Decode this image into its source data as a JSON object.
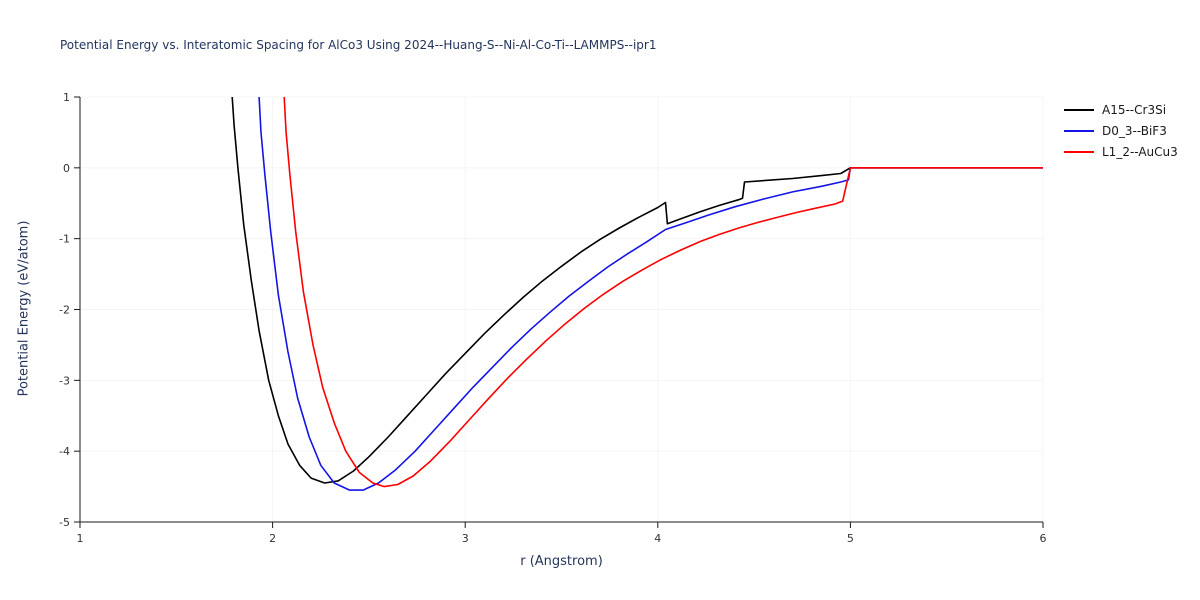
{
  "title": "Potential Energy vs. Interatomic Spacing for AlCo3 Using 2024--Huang-S--Ni-Al-Co-Ti--LAMMPS--ipr1",
  "style": {
    "title_color": "#24355c",
    "axis_label_color": "#24355c",
    "tick_label_color": "#333333",
    "axis_line_color": "#1a1a1a",
    "background": "#ffffff"
  },
  "axes": {
    "xlabel": "r (Angstrom)",
    "ylabel": "Potential Energy (eV/atom)"
  },
  "legend": {
    "position": "top-right",
    "entries": [
      {
        "label": "A15--Cr3Si",
        "color": "#000000"
      },
      {
        "label": "D0_3--BiF3",
        "color": "#1414e6"
      },
      {
        "label": "L1_2--AuCu3",
        "color": "#ff0000"
      }
    ]
  },
  "chart_data": {
    "type": "line",
    "title": "Potential Energy vs. Interatomic Spacing for AlCo3 Using 2024--Huang-S--Ni-Al-Co-Ti--LAMMPS--ipr1",
    "xlabel": "r (Angstrom)",
    "ylabel": "Potential Energy (eV/atom)",
    "xlim": [
      1,
      6
    ],
    "ylim": [
      -5,
      1
    ],
    "x_ticks": [
      1,
      2,
      3,
      4,
      5,
      6
    ],
    "y_ticks": [
      -5,
      -4,
      -3,
      -2,
      -1,
      0,
      1
    ],
    "grid": false,
    "legend_position": "top-right",
    "series": [
      {
        "name": "A15--Cr3Si",
        "color": "#000000",
        "points": [
          [
            1.79,
            1.0
          ],
          [
            1.8,
            0.6
          ],
          [
            1.82,
            0.0
          ],
          [
            1.85,
            -0.8
          ],
          [
            1.89,
            -1.6
          ],
          [
            1.93,
            -2.3
          ],
          [
            1.98,
            -3.0
          ],
          [
            2.03,
            -3.5
          ],
          [
            2.08,
            -3.9
          ],
          [
            2.14,
            -4.2
          ],
          [
            2.2,
            -4.38
          ],
          [
            2.27,
            -4.45
          ],
          [
            2.34,
            -4.42
          ],
          [
            2.42,
            -4.28
          ],
          [
            2.5,
            -4.08
          ],
          [
            2.6,
            -3.8
          ],
          [
            2.7,
            -3.5
          ],
          [
            2.8,
            -3.2
          ],
          [
            2.9,
            -2.9
          ],
          [
            3.0,
            -2.62
          ],
          [
            3.1,
            -2.34
          ],
          [
            3.2,
            -2.08
          ],
          [
            3.3,
            -1.83
          ],
          [
            3.4,
            -1.6
          ],
          [
            3.5,
            -1.39
          ],
          [
            3.6,
            -1.19
          ],
          [
            3.7,
            -1.01
          ],
          [
            3.8,
            -0.85
          ],
          [
            3.9,
            -0.7
          ],
          [
            4.0,
            -0.56
          ],
          [
            4.04,
            -0.49
          ],
          [
            4.05,
            -0.79
          ],
          [
            4.12,
            -0.72
          ],
          [
            4.22,
            -0.62
          ],
          [
            4.32,
            -0.53
          ],
          [
            4.42,
            -0.45
          ],
          [
            4.44,
            -0.43
          ],
          [
            4.45,
            -0.2
          ],
          [
            4.55,
            -0.18
          ],
          [
            4.7,
            -0.15
          ],
          [
            4.85,
            -0.11
          ],
          [
            4.95,
            -0.08
          ],
          [
            5.0,
            0.0
          ],
          [
            6.0,
            0.0
          ]
        ]
      },
      {
        "name": "D0_3--BiF3",
        "color": "#1414e6",
        "points": [
          [
            1.93,
            1.0
          ],
          [
            1.94,
            0.5
          ],
          [
            1.96,
            -0.1
          ],
          [
            1.99,
            -0.9
          ],
          [
            2.03,
            -1.8
          ],
          [
            2.08,
            -2.6
          ],
          [
            2.13,
            -3.25
          ],
          [
            2.19,
            -3.8
          ],
          [
            2.25,
            -4.2
          ],
          [
            2.32,
            -4.45
          ],
          [
            2.4,
            -4.55
          ],
          [
            2.47,
            -4.55
          ],
          [
            2.55,
            -4.45
          ],
          [
            2.64,
            -4.26
          ],
          [
            2.74,
            -4.0
          ],
          [
            2.84,
            -3.7
          ],
          [
            2.94,
            -3.4
          ],
          [
            3.04,
            -3.1
          ],
          [
            3.14,
            -2.82
          ],
          [
            3.24,
            -2.54
          ],
          [
            3.34,
            -2.28
          ],
          [
            3.44,
            -2.04
          ],
          [
            3.54,
            -1.81
          ],
          [
            3.64,
            -1.6
          ],
          [
            3.74,
            -1.4
          ],
          [
            3.84,
            -1.22
          ],
          [
            3.94,
            -1.05
          ],
          [
            4.04,
            -0.87
          ],
          [
            4.14,
            -0.78
          ],
          [
            4.26,
            -0.67
          ],
          [
            4.4,
            -0.55
          ],
          [
            4.55,
            -0.44
          ],
          [
            4.7,
            -0.34
          ],
          [
            4.85,
            -0.26
          ],
          [
            4.95,
            -0.2
          ],
          [
            4.99,
            -0.17
          ],
          [
            5.0,
            0.0
          ],
          [
            6.0,
            0.0
          ]
        ]
      },
      {
        "name": "L1_2--AuCu3",
        "color": "#ff0000",
        "points": [
          [
            2.06,
            1.0
          ],
          [
            2.07,
            0.5
          ],
          [
            2.09,
            -0.1
          ],
          [
            2.12,
            -0.9
          ],
          [
            2.16,
            -1.75
          ],
          [
            2.21,
            -2.5
          ],
          [
            2.26,
            -3.1
          ],
          [
            2.32,
            -3.6
          ],
          [
            2.38,
            -4.0
          ],
          [
            2.45,
            -4.3
          ],
          [
            2.52,
            -4.45
          ],
          [
            2.58,
            -4.5
          ],
          [
            2.65,
            -4.47
          ],
          [
            2.73,
            -4.35
          ],
          [
            2.82,
            -4.14
          ],
          [
            2.92,
            -3.86
          ],
          [
            3.02,
            -3.56
          ],
          [
            3.12,
            -3.26
          ],
          [
            3.22,
            -2.97
          ],
          [
            3.32,
            -2.7
          ],
          [
            3.42,
            -2.44
          ],
          [
            3.52,
            -2.2
          ],
          [
            3.62,
            -1.98
          ],
          [
            3.72,
            -1.78
          ],
          [
            3.82,
            -1.6
          ],
          [
            3.92,
            -1.44
          ],
          [
            4.02,
            -1.29
          ],
          [
            4.12,
            -1.16
          ],
          [
            4.22,
            -1.04
          ],
          [
            4.32,
            -0.94
          ],
          [
            4.42,
            -0.85
          ],
          [
            4.52,
            -0.77
          ],
          [
            4.62,
            -0.7
          ],
          [
            4.72,
            -0.63
          ],
          [
            4.82,
            -0.57
          ],
          [
            4.92,
            -0.51
          ],
          [
            4.96,
            -0.47
          ],
          [
            4.97,
            -0.35
          ],
          [
            5.0,
            0.0
          ],
          [
            6.0,
            0.0
          ]
        ]
      }
    ]
  }
}
